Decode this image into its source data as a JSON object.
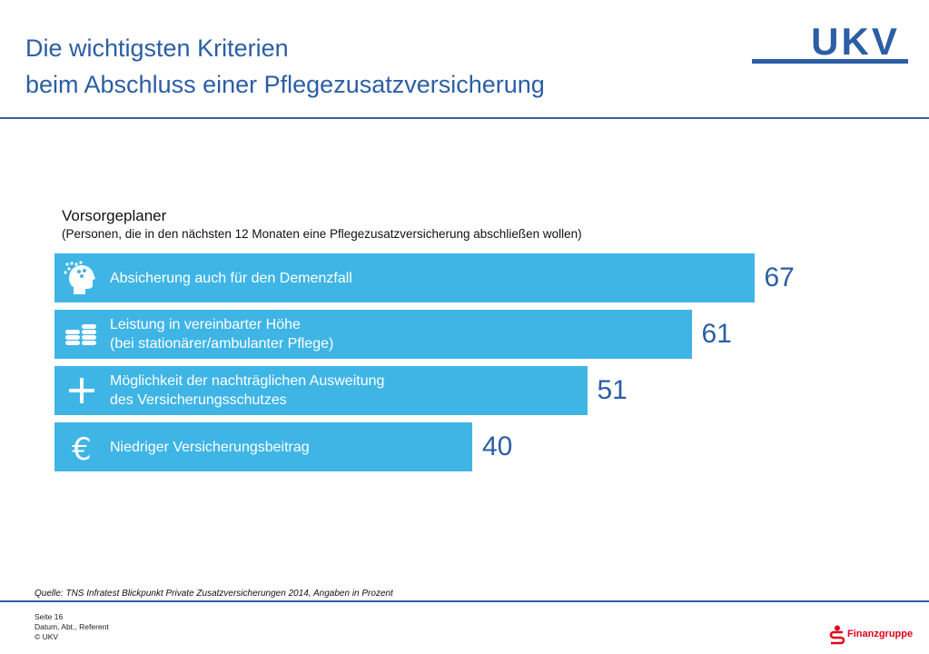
{
  "header": {
    "title_line1": "Die wichtigsten Kriterien",
    "title_line2": "beim Abschluss einer Pflegezusatzversicherung",
    "brand": "UKV"
  },
  "chart_data": {
    "type": "bar",
    "orientation": "horizontal",
    "title": "Vorsorgeplaner",
    "subtitle": "(Personen, die in den nächsten 12 Monaten eine Pflegezusatzversicherung abschließen wollen)",
    "xlim": [
      0,
      100
    ],
    "grid": false,
    "bar_color": "#3fb5e6",
    "value_color": "#2b5ea5",
    "items": [
      {
        "lines": [
          "Absicherung auch für den Demenzfall"
        ],
        "value": 67,
        "value_label": "67",
        "icon": "head-brain-icon"
      },
      {
        "lines": [
          "Leistung in vereinbarter Höhe",
          "(bei stationärer/ambulanter Pflege)"
        ],
        "value": 61,
        "value_label": "61",
        "icon": "coins-icon"
      },
      {
        "lines": [
          "Möglichkeit der nachträglichen Ausweitung",
          "des Versicherungsschutzes"
        ],
        "value": 51,
        "value_label": "51",
        "icon": "plus-icon"
      },
      {
        "lines": [
          "Niedriger Versicherungsbeitrag"
        ],
        "value": 40,
        "value_label": "40",
        "icon": "euro-icon"
      }
    ]
  },
  "source": "Quelle: TNS Infratest Blickpunkt Private Zusatzversicherungen 2014, Angaben in Prozent",
  "footer": {
    "page": "Seite 16",
    "meta": "Datum, Abt., Referent",
    "copyright": "© UKV",
    "partner": "Finanzgruppe"
  },
  "colors": {
    "accent": "#2b5ea5",
    "bar": "#3fb5e6",
    "partner_red": "#e2001a"
  }
}
